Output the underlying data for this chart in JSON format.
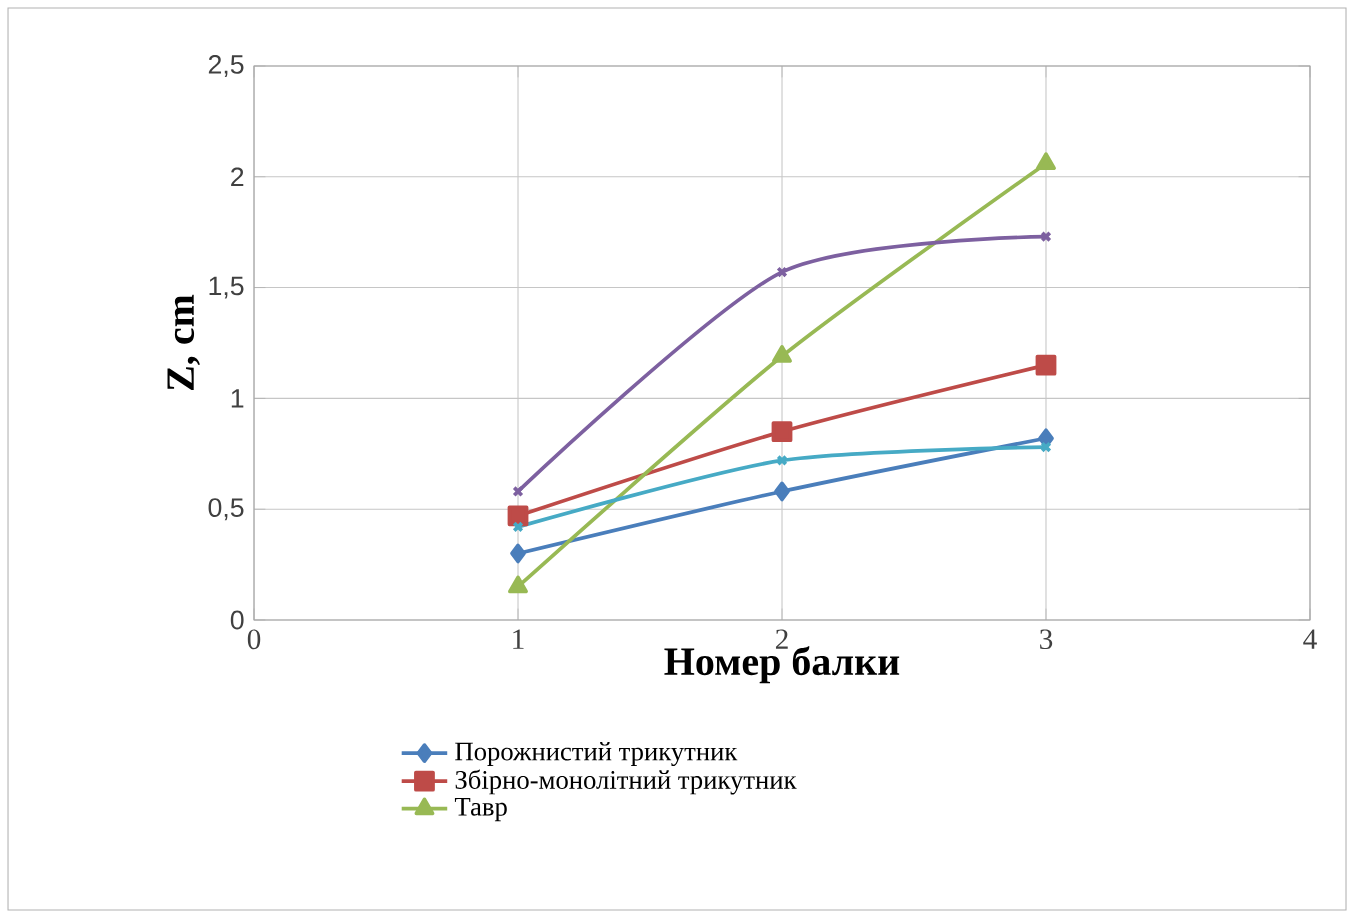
{
  "chart_data": {
    "type": "line",
    "xlabel": "Номер балки",
    "ylabel": "Z, cm",
    "x": [
      1,
      2,
      3
    ],
    "series": [
      {
        "name": "Порожнистий трикутник",
        "color": "#4a7ebb",
        "marker": "diamond",
        "values": [
          0.3,
          0.58,
          0.82
        ]
      },
      {
        "name": "Збірно-монолітний трикутник",
        "color": "#be4b48",
        "marker": "square",
        "values": [
          0.47,
          0.85,
          1.15
        ]
      },
      {
        "name": "Тавр",
        "color": "#98b954",
        "marker": "triangle",
        "values": [
          0.15,
          1.19,
          2.06
        ]
      },
      {
        "color": "#7d60a0",
        "marker": "cross",
        "values": [
          0.58,
          1.57,
          1.73
        ]
      },
      {
        "color": "#46aac5",
        "marker": "cross",
        "values": [
          0.42,
          0.72,
          0.78
        ]
      }
    ],
    "xlim": [
      0,
      4
    ],
    "xticks": [
      0,
      1,
      2,
      3,
      4
    ],
    "ylim": [
      0,
      2.5
    ],
    "yticks": [
      0,
      {
        "value": 0.5,
        "label": "0,5"
      },
      1,
      {
        "value": 1.5,
        "label": "1,5"
      },
      2,
      {
        "value": 2.5,
        "label": "2,5"
      }
    ],
    "grid": true,
    "legend": "bottom"
  }
}
